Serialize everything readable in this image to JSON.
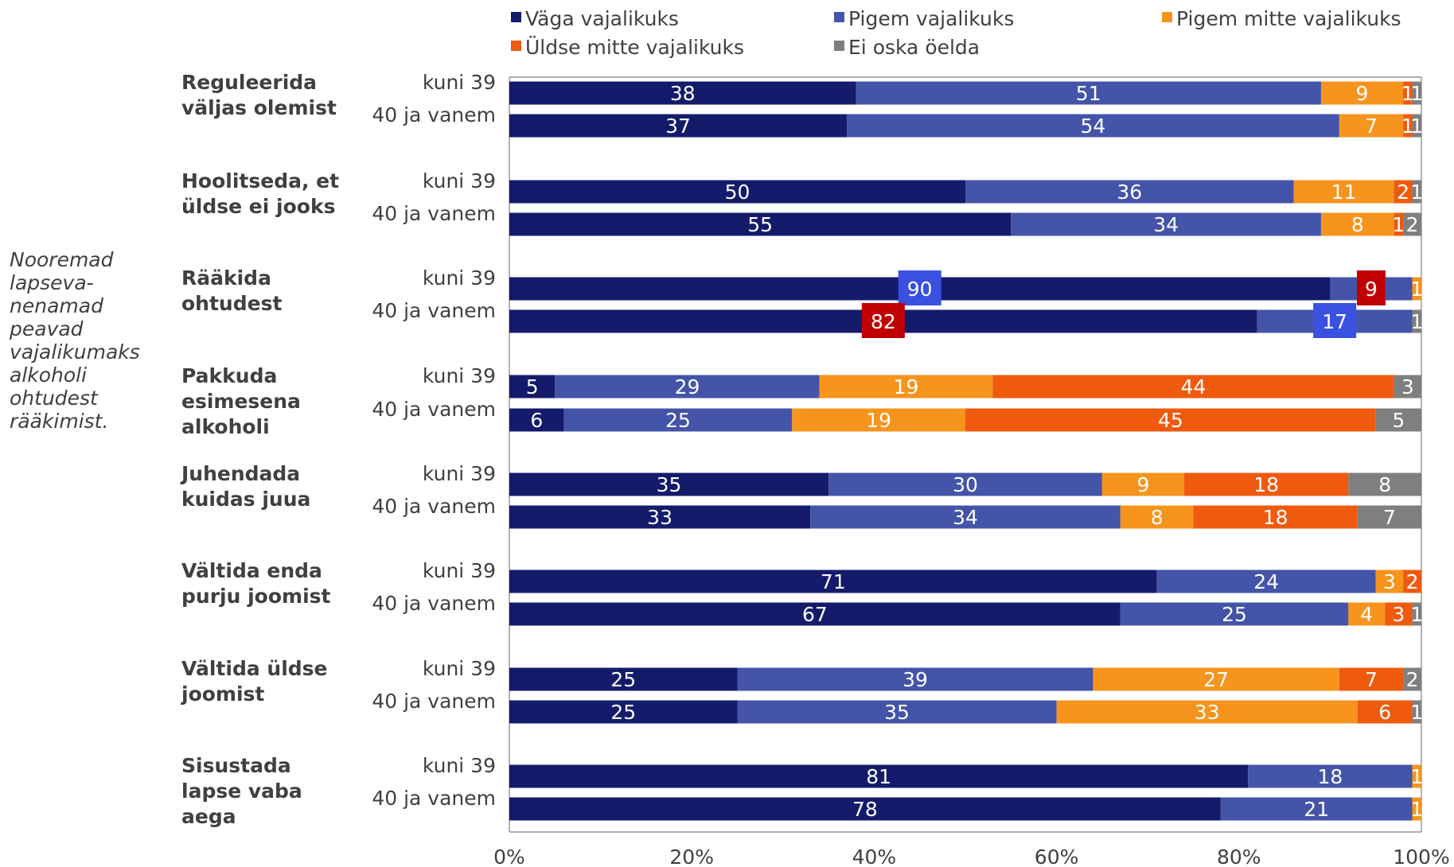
{
  "side_note": [
    "Nooremad",
    "lapseva-",
    "nenamad",
    "peavad",
    "vajalikumaks",
    "alkoholi",
    "ohtudest",
    "rääkimist."
  ],
  "chart_data": {
    "type": "bar",
    "orientation": "horizontal",
    "stacked": "percent",
    "xlim": [
      0,
      100
    ],
    "x_ticks": [
      "0%",
      "20%",
      "40%",
      "60%",
      "80%",
      "100%"
    ],
    "legend_position": "top",
    "series": [
      {
        "name": "Väga vajalikuks",
        "color": "#151b6b"
      },
      {
        "name": "Pigem vajalikuks",
        "color": "#4454a8"
      },
      {
        "name": "Pigem mitte vajalikuks",
        "color": "#f7941d"
      },
      {
        "name": "Üldse mitte vajalikuks",
        "color": "#ef5a0e"
      },
      {
        "name": "Ei oska öelda",
        "color": "#7f7f7f"
      }
    ],
    "groups": [
      {
        "label": [
          "Reguleerida",
          "väljas olemist"
        ],
        "rows": [
          {
            "label": "kuni 39",
            "values": [
              38,
              51,
              9,
              1,
              1
            ]
          },
          {
            "label": "40 ja vanem",
            "values": [
              37,
              54,
              7,
              1,
              1
            ]
          }
        ]
      },
      {
        "label": [
          "Hoolitseda, et",
          "üldse ei jooks"
        ],
        "rows": [
          {
            "label": "kuni 39",
            "values": [
              50,
              36,
              11,
              2,
              1
            ]
          },
          {
            "label": "40 ja vanem",
            "values": [
              55,
              34,
              8,
              1,
              2
            ]
          }
        ]
      },
      {
        "label": [
          "Rääkida",
          "ohtudest"
        ],
        "rows": [
          {
            "label": "kuni 39",
            "values": [
              90,
              9,
              1,
              0,
              0
            ]
          },
          {
            "label": "40 ja vanem",
            "values": [
              82,
              17,
              0,
              0,
              1
            ]
          }
        ]
      },
      {
        "label": [
          "Pakkuda",
          "esimesena",
          "alkoholi"
        ],
        "rows": [
          {
            "label": "kuni 39",
            "values": [
              5,
              29,
              19,
              44,
              3
            ]
          },
          {
            "label": "40 ja vanem",
            "values": [
              6,
              25,
              19,
              45,
              5
            ]
          }
        ]
      },
      {
        "label": [
          "Juhendada",
          "kuidas juua"
        ],
        "rows": [
          {
            "label": "kuni 39",
            "values": [
              35,
              30,
              9,
              18,
              8
            ]
          },
          {
            "label": "40 ja vanem",
            "values": [
              33,
              34,
              8,
              18,
              7
            ]
          }
        ]
      },
      {
        "label": [
          "Vältida enda",
          "purju joomist"
        ],
        "rows": [
          {
            "label": "kuni 39",
            "values": [
              71,
              24,
              3,
              2,
              0
            ]
          },
          {
            "label": "40 ja vanem",
            "values": [
              67,
              25,
              4,
              3,
              1
            ]
          }
        ]
      },
      {
        "label": [
          "Vältida üldse",
          "joomist"
        ],
        "rows": [
          {
            "label": "kuni 39",
            "values": [
              25,
              39,
              27,
              7,
              2
            ]
          },
          {
            "label": "40 ja vanem",
            "values": [
              25,
              35,
              33,
              6,
              1
            ]
          }
        ]
      },
      {
        "label": [
          "Sisustada",
          "lapse vaba",
          "aega"
        ],
        "rows": [
          {
            "label": "kuni 39",
            "values": [
              81,
              18,
              1,
              0,
              0
            ]
          },
          {
            "label": "40 ja vanem",
            "values": [
              78,
              21,
              1,
              0,
              0
            ]
          }
        ]
      }
    ],
    "highlighted_labels": [
      {
        "group": 2,
        "row": 0,
        "series": 0,
        "fill": "#3a50e0"
      },
      {
        "group": 2,
        "row": 0,
        "series": 1,
        "fill": "#c00000"
      },
      {
        "group": 2,
        "row": 1,
        "series": 0,
        "fill": "#c00000"
      },
      {
        "group": 2,
        "row": 1,
        "series": 1,
        "fill": "#3a50e0"
      }
    ]
  }
}
